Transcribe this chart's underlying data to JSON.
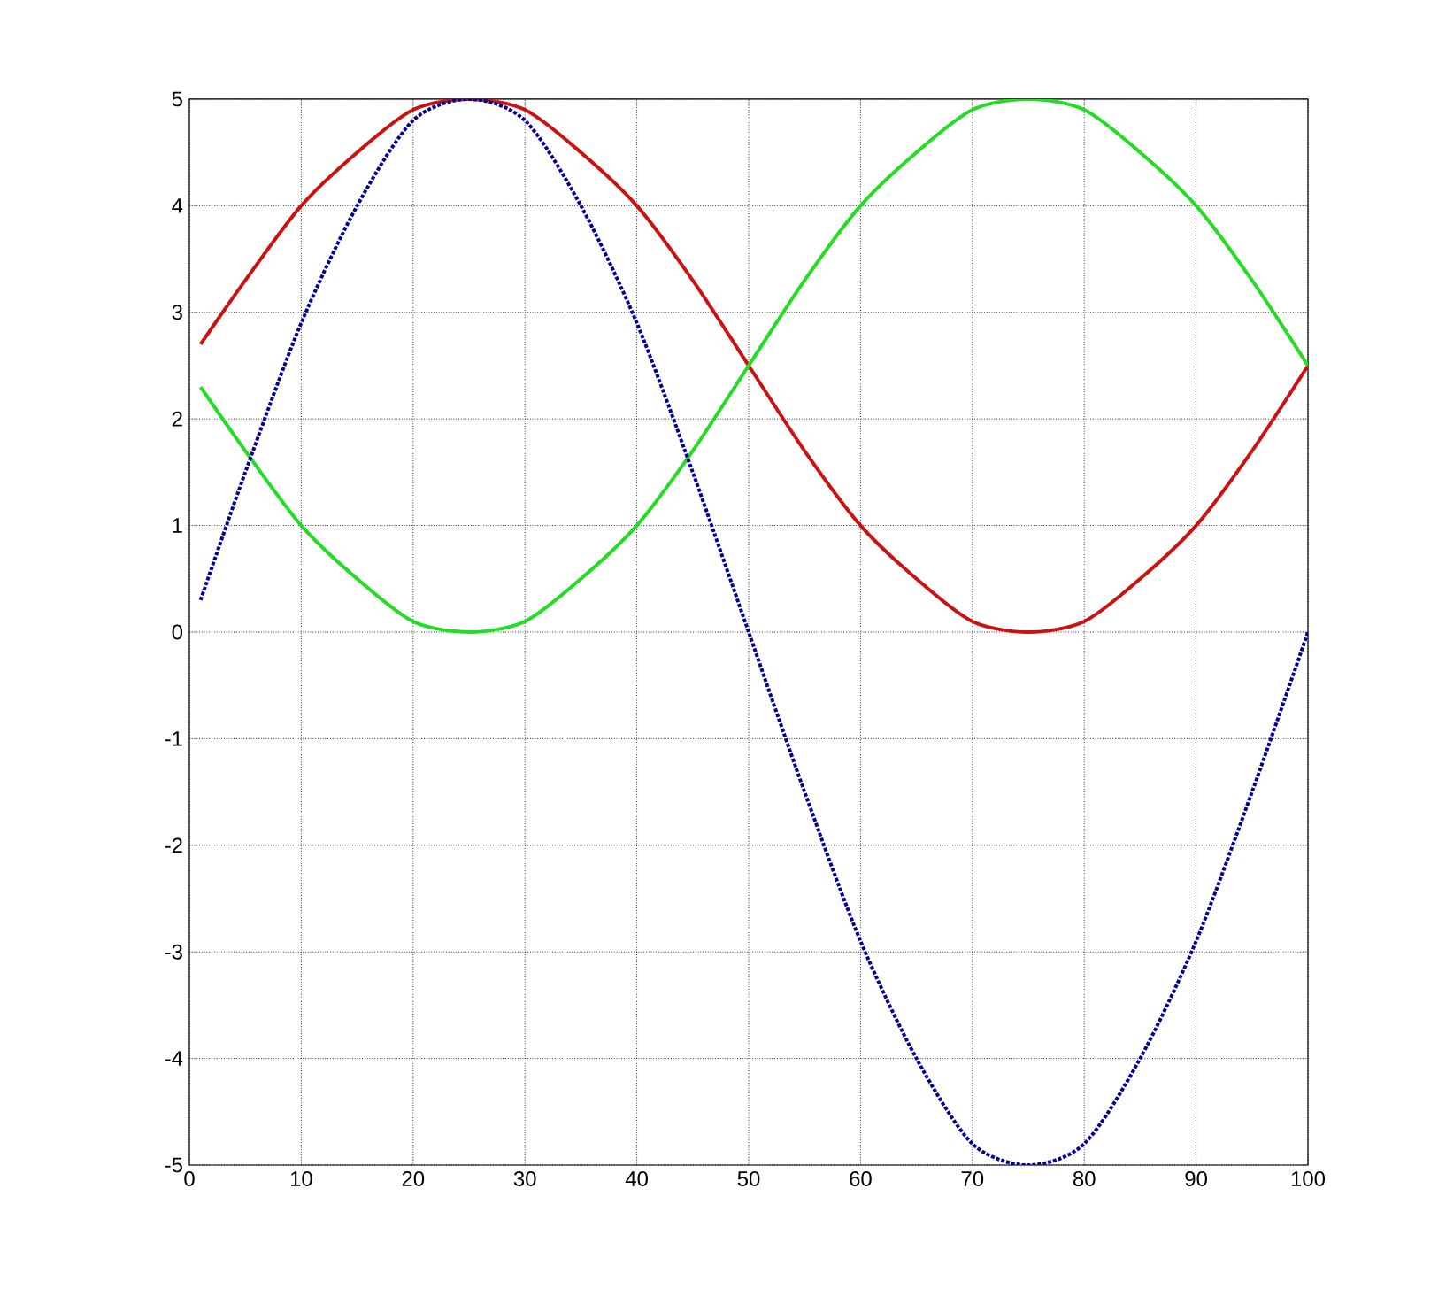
{
  "chart_data": {
    "type": "line",
    "x": [
      1,
      5,
      10,
      15,
      20,
      25,
      30,
      35,
      40,
      45,
      50,
      55,
      60,
      65,
      70,
      75,
      80,
      85,
      90,
      95,
      100
    ],
    "series": [
      {
        "color": "#cc1111",
        "line_style": "solid",
        "values": [
          2.7,
          3.3,
          4.0,
          4.5,
          4.9,
          5.0,
          4.9,
          4.5,
          4.0,
          3.3,
          2.5,
          1.7,
          1.0,
          0.5,
          0.1,
          0.0,
          0.1,
          0.5,
          1.0,
          1.7,
          2.5
        ]
      },
      {
        "color": "#22dd22",
        "line_style": "solid",
        "values": [
          2.3,
          1.7,
          1.0,
          0.5,
          0.1,
          0.0,
          0.1,
          0.5,
          1.0,
          1.7,
          2.5,
          3.3,
          4.0,
          4.5,
          4.9,
          5.0,
          4.9,
          4.5,
          4.0,
          3.3,
          2.5
        ]
      },
      {
        "color": "#000099",
        "line_style": "dotted",
        "values": [
          0.3,
          1.5,
          2.9,
          4.0,
          4.8,
          5.0,
          4.8,
          4.0,
          2.9,
          1.5,
          0.0,
          -1.5,
          -2.9,
          -4.0,
          -4.8,
          -5.0,
          -4.8,
          -4.0,
          -2.9,
          -1.5,
          0.0
        ]
      }
    ],
    "xlim": [
      0,
      100
    ],
    "ylim": [
      -5,
      5
    ],
    "xticks": [
      0,
      10,
      20,
      30,
      40,
      50,
      60,
      70,
      80,
      90,
      100
    ],
    "yticks": [
      -5,
      -4,
      -3,
      -2,
      -1,
      0,
      1,
      2,
      3,
      4,
      5
    ],
    "grid": true
  }
}
